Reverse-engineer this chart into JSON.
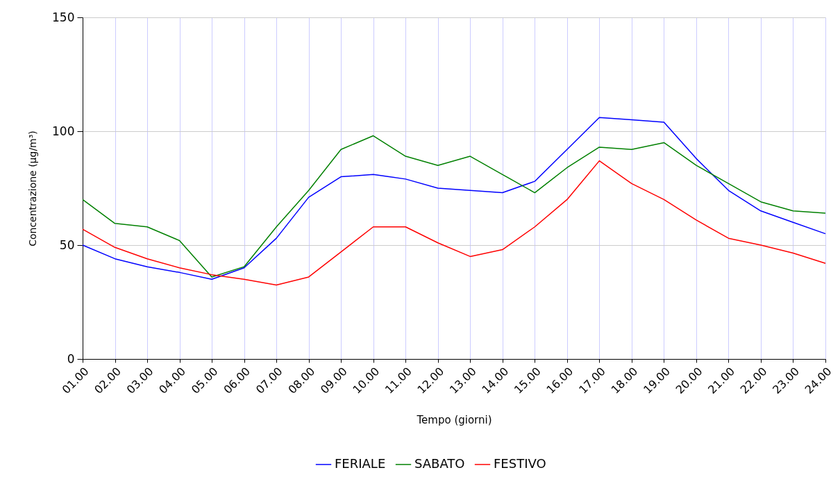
{
  "chart_data": {
    "type": "line",
    "xlabel": "Tempo (giorni)",
    "ylabel": "Concentrazione (µg/m³)",
    "categories": [
      "01.00",
      "02.00",
      "03.00",
      "04.00",
      "05.00",
      "06.00",
      "07.00",
      "08.00",
      "09.00",
      "10.00",
      "11.00",
      "12.00",
      "13.00",
      "14.00",
      "15.00",
      "16.00",
      "17.00",
      "18.00",
      "19.00",
      "20.00",
      "21.00",
      "22.00",
      "23.00",
      "24.00"
    ],
    "series": [
      {
        "name": "FERIALE",
        "color": "#0000ff",
        "values": [
          50,
          44,
          40.5,
          38,
          35,
          40,
          53,
          71,
          80,
          81,
          79,
          75,
          74,
          73,
          78,
          92,
          106,
          105,
          104,
          88,
          74,
          65,
          60,
          55
        ]
      },
      {
        "name": "SABATO",
        "color": "#008000",
        "values": [
          70,
          59.5,
          58,
          52,
          36,
          40.5,
          58,
          74,
          92,
          98,
          89,
          85,
          89,
          81,
          73,
          84,
          93,
          92,
          95,
          85,
          77,
          69,
          65,
          64
        ]
      },
      {
        "name": "FESTIVO",
        "color": "#ff0000",
        "values": [
          57,
          49,
          44,
          40,
          37,
          35,
          32.5,
          36,
          47,
          58,
          58,
          51,
          45,
          48,
          58,
          70,
          87,
          77,
          70,
          61,
          53,
          50,
          46.5,
          42
        ]
      }
    ],
    "ylim": [
      0,
      150
    ],
    "yticks": [
      0,
      50,
      100,
      150
    ],
    "grid": true,
    "legend": "bottom"
  }
}
